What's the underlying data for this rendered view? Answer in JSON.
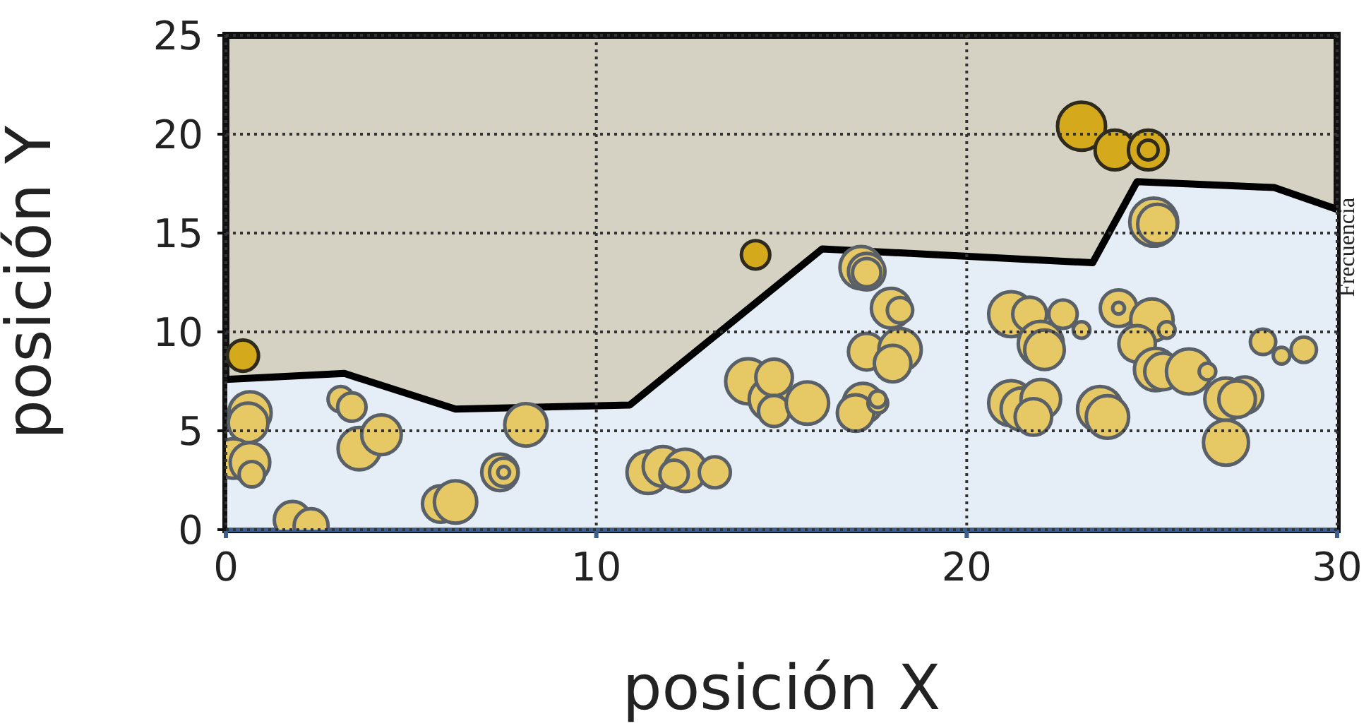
{
  "chart_data": {
    "type": "bubble",
    "xlabel": "posición X",
    "ylabel": "posición Y",
    "annotations": [
      "Frecuencia"
    ],
    "xlim": [
      0,
      30
    ],
    "ylim": [
      0,
      25
    ],
    "xticks": [
      0,
      10,
      20,
      30
    ],
    "yticks": [
      0,
      5,
      10,
      15,
      20,
      25
    ],
    "grid": true,
    "series": [
      {
        "type": "area",
        "color": "#e5edf7",
        "x": [
          0,
          3.2,
          6.2,
          10.9,
          16.1,
          23.4,
          24.6,
          28.3,
          30
        ],
        "values": [
          7.6,
          7.9,
          6.1,
          6.3,
          14.2,
          13.5,
          17.6,
          17.3,
          16.2
        ]
      },
      {
        "color": "#d4a91c",
        "x": [
          0.46,
          14.3,
          23.1,
          24.0,
          24.9,
          24.9
        ],
        "values": [
          8.8,
          13.9,
          20.4,
          19.2,
          19.2,
          19.2
        ],
        "sizes": [
          0.42,
          0.35,
          1,
          0.68,
          0.68,
          0.17
        ]
      },
      {
        "color": "#e6c865",
        "x": [
          0.65,
          0.6,
          0.2,
          0.65,
          0.7,
          1.8,
          2.3,
          3.1,
          3.4,
          3.6,
          4.2,
          5.8,
          6.2,
          7.4,
          7.5,
          7.5,
          8.1,
          11.4,
          11.8,
          12.4,
          12.1,
          13.2,
          14.1,
          14.7,
          14.8,
          14.8,
          15.7,
          17.2,
          17.0,
          17.6,
          17.15,
          17.3,
          17.3,
          17.96,
          18.2,
          17.3,
          18.2,
          18.0,
          21.2,
          21.7,
          22.0,
          22.1,
          22.6,
          23.1,
          24.1,
          24.1,
          25.0,
          25.4,
          24.6,
          25.05,
          25.15,
          25.1,
          25.3,
          26.0,
          26.5,
          27.0,
          27.5,
          27.3,
          27.0,
          28.0,
          28.5,
          29.1,
          21.2,
          21.5,
          22.0,
          21.8,
          23.6,
          23.8,
          17.6
        ],
        "values": [
          5.9,
          5.4,
          3.6,
          3.4,
          2.8,
          0.5,
          0.2,
          6.6,
          6.2,
          4.1,
          4.8,
          1.3,
          1.4,
          2.9,
          2.9,
          2.9,
          5.3,
          2.9,
          3.2,
          3.0,
          2.8,
          2.9,
          7.5,
          6.6,
          7.7,
          6.0,
          6.4,
          6.4,
          5.9,
          6.4,
          13.25,
          13.05,
          13.0,
          11.2,
          11.1,
          9.0,
          9.1,
          8.4,
          10.9,
          10.9,
          9.4,
          9.1,
          10.9,
          10.1,
          11.2,
          11.2,
          10.6,
          10.1,
          9.4,
          15.55,
          15.45,
          8.1,
          8.0,
          8.0,
          8.0,
          6.6,
          6.8,
          6.6,
          4.4,
          9.5,
          8.8,
          9.1,
          6.4,
          6.1,
          6.6,
          5.7,
          6.1,
          5.7,
          6.6
        ],
        "sizes": [
          0.78,
          0.68,
          0.68,
          0.68,
          0.28,
          0.58,
          0.5,
          0.28,
          0.35,
          0.78,
          0.68,
          0.58,
          0.78,
          0.58,
          0.35,
          0.06,
          0.78,
          0.78,
          0.68,
          0.78,
          0.35,
          0.42,
          0.88,
          0.78,
          0.58,
          0.42,
          0.78,
          0.68,
          0.58,
          0.17,
          0.78,
          0.58,
          0.35,
          0.68,
          0.28,
          0.58,
          0.78,
          0.58,
          0.88,
          0.5,
          0.88,
          0.68,
          0.35,
          0.12,
          0.58,
          0.06,
          0.78,
          0.12,
          0.58,
          1,
          0.68,
          0.78,
          0.58,
          0.88,
          0.12,
          0.78,
          0.58,
          0.58,
          0.88,
          0.28,
          0.12,
          0.28,
          0.88,
          0.78,
          0.68,
          0.58,
          0.88,
          0.78,
          0.12
        ]
      }
    ]
  }
}
